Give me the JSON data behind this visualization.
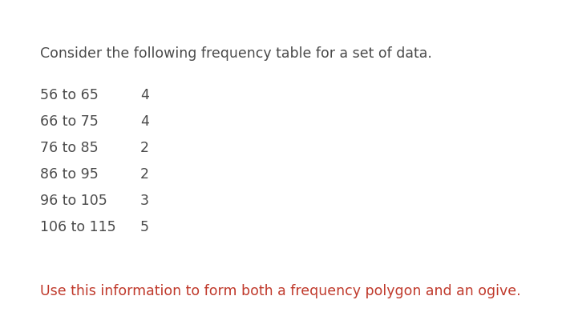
{
  "title_text": "Consider the following frequency table for a set of data.",
  "title_color": "#4a4a4a",
  "title_fontsize": 12.5,
  "rows": [
    {
      "label": "56 to 65",
      "value": "4"
    },
    {
      "label": "66 to 75",
      "value": "4"
    },
    {
      "label": "76 to 85",
      "value": "2"
    },
    {
      "label": "86 to 95",
      "value": "2"
    },
    {
      "label": "96 to 105",
      "value": "3"
    },
    {
      "label": "106 to 115",
      "value": "5"
    }
  ],
  "row_label_color": "#4a4a4a",
  "row_value_color": "#4a4a4a",
  "row_fontsize": 12.5,
  "footer_text": "Use this information to form both a frequency polygon and an ogive.",
  "footer_color": "#c0392b",
  "footer_fontsize": 12.5,
  "background_color": "#ffffff",
  "fig_width": 7.06,
  "fig_height": 3.9,
  "dpi": 100
}
